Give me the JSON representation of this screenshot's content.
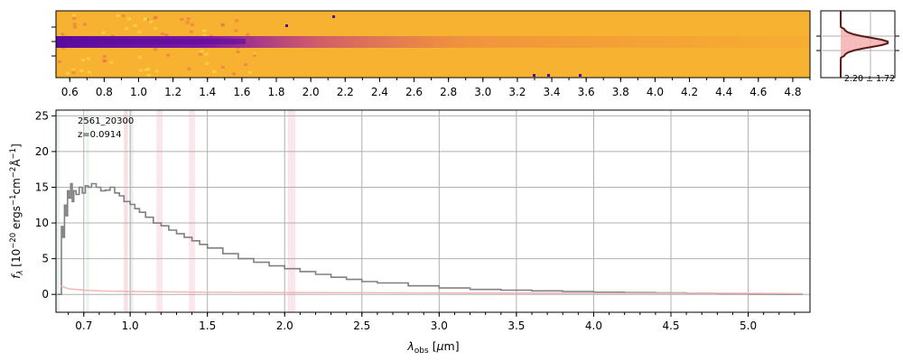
{
  "chart_data": [
    {
      "type": "heatmap",
      "panel": "2d-spectrum",
      "colormap": "plasma",
      "dominant_color": "#f7b232",
      "trace_color": "#6a0fa0",
      "x_tick_labels": [
        "0.6",
        "0.8",
        "1.0",
        "1.2",
        "1.4",
        "1.6",
        "1.8",
        "2.0",
        "2.2",
        "2.4",
        "2.6",
        "2.8",
        "3.0",
        "3.2",
        "3.4",
        "3.6",
        "3.8",
        "4.0",
        "4.2",
        "4.4",
        "4.6",
        "4.8"
      ],
      "x_tick_values": [
        0.6,
        0.8,
        1.0,
        1.2,
        1.4,
        1.6,
        1.8,
        2.0,
        2.2,
        2.4,
        2.6,
        2.8,
        3.0,
        3.2,
        3.4,
        3.6,
        3.8,
        4.0,
        4.2,
        4.4,
        4.6,
        4.8
      ],
      "xlim": [
        0.52,
        4.9
      ]
    },
    {
      "type": "line",
      "panel": "profile",
      "label": "2.20 ± 1.72",
      "line_color": "#5a1a1a",
      "fill_color": "#f4aaaa"
    },
    {
      "type": "line",
      "panel": "1d-spectrum",
      "xlabel": "λobs [μm]",
      "ylabel": "fλ [10−20 ergs−1cm−2Å−1]",
      "xlim": [
        0.52,
        5.4
      ],
      "ylim": [
        -2.5,
        25.8
      ],
      "x_ticks": [
        0.7,
        1.0,
        1.5,
        2.0,
        2.5,
        3.0,
        3.5,
        4.0,
        4.5,
        5.0
      ],
      "x_tick_labels": [
        "0.7",
        "1.0",
        "1.5",
        "2.0",
        "2.5",
        "3.0",
        "3.5",
        "4.0",
        "4.5",
        "5.0"
      ],
      "y_ticks": [
        0,
        5,
        10,
        15,
        20,
        25
      ],
      "y_tick_labels": [
        "0",
        "5",
        "10",
        "15",
        "20",
        "25"
      ],
      "grid": true,
      "annotation": [
        "2561_20300",
        "z=0.0914"
      ],
      "annotation_position": "top-left",
      "series": [
        {
          "color": "#808080",
          "step": true,
          "x": [
            0.53,
            0.545,
            0.555,
            0.565,
            0.575,
            0.585,
            0.595,
            0.605,
            0.615,
            0.625,
            0.635,
            0.65,
            0.67,
            0.69,
            0.71,
            0.73,
            0.75,
            0.78,
            0.81,
            0.84,
            0.87,
            0.9,
            0.93,
            0.96,
            1.0,
            1.03,
            1.06,
            1.1,
            1.15,
            1.2,
            1.25,
            1.3,
            1.35,
            1.4,
            1.45,
            1.5,
            1.6,
            1.7,
            1.8,
            1.9,
            2.0,
            2.1,
            2.2,
            2.3,
            2.4,
            2.5,
            2.6,
            2.8,
            3.0,
            3.2,
            3.4,
            3.6,
            3.8,
            4.0,
            4.2,
            4.4,
            4.6,
            4.8,
            5.0,
            5.2,
            5.35
          ],
          "y": [
            0,
            0,
            9.5,
            8.0,
            12.5,
            11.0,
            14.5,
            13.5,
            15.5,
            13.0,
            14.5,
            14.0,
            15.0,
            14.2,
            15.2,
            15.0,
            15.5,
            15.0,
            14.5,
            14.6,
            15.0,
            14.2,
            13.8,
            13.0,
            12.6,
            12.0,
            11.5,
            10.8,
            10.0,
            9.6,
            9.0,
            8.5,
            8.0,
            7.5,
            7.0,
            6.5,
            5.7,
            5.0,
            4.5,
            4.0,
            3.6,
            3.2,
            2.8,
            2.4,
            2.1,
            1.8,
            1.6,
            1.2,
            0.9,
            0.7,
            0.6,
            0.5,
            0.4,
            0.3,
            0.25,
            0.2,
            0.15,
            0.1,
            0.05,
            0.03,
            0.0
          ]
        },
        {
          "color": "#f2b3b3",
          "step": false,
          "x": [
            0.55,
            0.6,
            0.7,
            0.8,
            1.0,
            1.5,
            2.0,
            3.0,
            4.0,
            5.0,
            5.35
          ],
          "y": [
            1.2,
            0.8,
            0.6,
            0.5,
            0.4,
            0.3,
            0.25,
            0.2,
            0.18,
            0.15,
            0.12
          ]
        }
      ],
      "shaded_bands": [
        {
          "x0": 0.52,
          "x1": 0.545,
          "color": "#d8eedd"
        },
        {
          "x0": 0.715,
          "x1": 0.735,
          "color": "#d8eedd"
        },
        {
          "x0": 0.96,
          "x1": 0.985,
          "color": "#f3c4cc"
        },
        {
          "x0": 0.995,
          "x1": 1.02,
          "color": "#e0e0e0"
        },
        {
          "x0": 1.17,
          "x1": 1.21,
          "color": "#f8d3da"
        },
        {
          "x0": 1.38,
          "x1": 1.42,
          "color": "#f8d3da"
        },
        {
          "x0": 2.02,
          "x1": 2.07,
          "color": "#f8d3da"
        }
      ]
    }
  ]
}
